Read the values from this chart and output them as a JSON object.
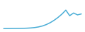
{
  "x": [
    0,
    1,
    2,
    3,
    4,
    5,
    6,
    7,
    8,
    9,
    10,
    11,
    12,
    13,
    14,
    15,
    16,
    17,
    18,
    19,
    20
  ],
  "y": [
    0.3,
    0.35,
    0.38,
    0.42,
    0.45,
    0.5,
    0.6,
    0.75,
    1.0,
    1.4,
    2.0,
    2.9,
    4.1,
    5.6,
    7.4,
    9.5,
    12.0,
    8.5,
    10.2,
    9.0,
    9.6
  ],
  "line_color": "#4aadd6",
  "line_width": 1.1,
  "background_color": "#ffffff",
  "xlim_min": -0.5,
  "xlim_max": 20.5,
  "ylim_min": -0.2,
  "ylim_max": 18.0
}
